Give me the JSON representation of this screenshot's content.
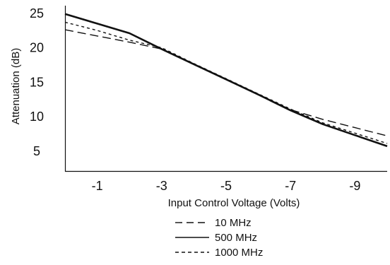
{
  "chart_data": {
    "type": "line",
    "xlabel": "Input Control Voltage (Volts)",
    "ylabel": "Attenuation (dB)",
    "x_ticks": [
      -1,
      -3,
      -5,
      -7,
      -9
    ],
    "x_tick_labels": [
      "-1",
      "-3",
      "-5",
      "-7",
      "-9"
    ],
    "y_ticks": [
      5,
      10,
      15,
      20,
      25
    ],
    "y_tick_labels": [
      "5",
      "10",
      "15",
      "20",
      "25"
    ],
    "xlim": [
      0,
      -10
    ],
    "ylim": [
      2,
      26
    ],
    "grid": false,
    "legend_position": "bottom",
    "series": [
      {
        "name": "10 MHz",
        "dash": "dashed",
        "x": [
          0,
          -1,
          -2,
          -3,
          -4,
          -5,
          -6,
          -7,
          -8,
          -9,
          -10
        ],
        "y": [
          22.5,
          21.6,
          20.7,
          19.7,
          17.5,
          15.3,
          13.1,
          10.9,
          9.5,
          8.3,
          7.1
        ]
      },
      {
        "name": "500 MHz",
        "dash": "solid",
        "x": [
          0,
          -1,
          -2,
          -3,
          -4,
          -5,
          -6,
          -7,
          -8,
          -9,
          -10
        ],
        "y": [
          24.8,
          23.4,
          22.0,
          19.7,
          17.5,
          15.3,
          13.1,
          10.8,
          8.8,
          7.2,
          5.6
        ]
      },
      {
        "name": "1000 MHz",
        "dash": "dotted",
        "x": [
          0,
          -1,
          -2,
          -3,
          -4,
          -5,
          -6,
          -7,
          -8,
          -9,
          -10
        ],
        "y": [
          23.6,
          22.4,
          21.0,
          19.9,
          17.6,
          15.4,
          13.2,
          11.0,
          9.0,
          7.5,
          6.0
        ]
      }
    ]
  }
}
